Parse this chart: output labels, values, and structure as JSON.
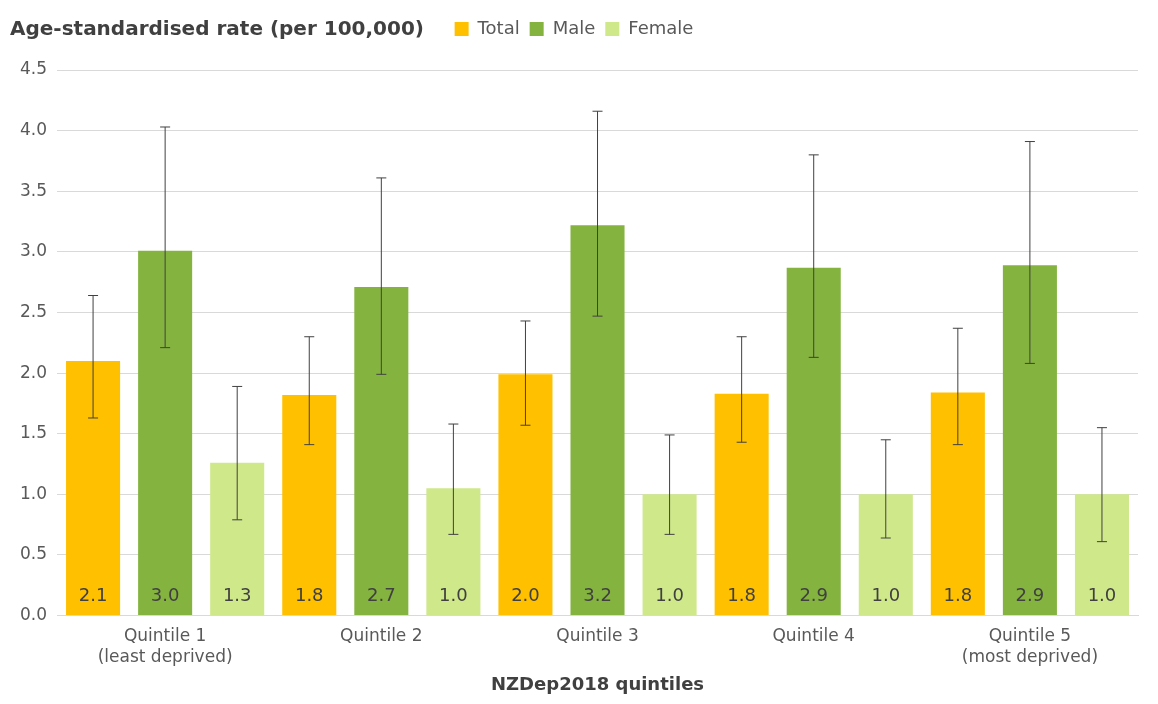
{
  "chart_data": {
    "type": "bar",
    "ylabel": "Age-standardised rate (per 100,000)",
    "xlabel": "NZDep2018 quintiles",
    "categories": [
      "Quintile 1\n(least deprived)",
      "Quintile 2",
      "Quintile 3",
      "Quintile 4",
      "Quintile 5\n(most deprived)"
    ],
    "series": [
      {
        "name": "Total",
        "color": "#ffc000",
        "values": [
          2.1,
          1.82,
          1.99,
          1.83,
          1.84
        ],
        "errors": [
          [
            1.63,
            2.64
          ],
          [
            1.41,
            2.3
          ],
          [
            1.57,
            2.43
          ],
          [
            1.43,
            2.3
          ],
          [
            1.41,
            2.37
          ]
        ],
        "value_labels": [
          "2.1",
          "1.8",
          "2.0",
          "1.8",
          "1.8"
        ]
      },
      {
        "name": "Male",
        "color": "#84b33f",
        "values": [
          3.01,
          2.71,
          3.22,
          2.87,
          2.89
        ],
        "errors": [
          [
            2.21,
            4.03
          ],
          [
            1.99,
            3.61
          ],
          [
            2.47,
            4.16
          ],
          [
            2.13,
            3.8
          ],
          [
            2.08,
            3.91
          ]
        ],
        "value_labels": [
          "3.0",
          "2.7",
          "3.2",
          "2.9",
          "2.9"
        ]
      },
      {
        "name": "Female",
        "color": "#cfe88a",
        "values": [
          1.26,
          1.05,
          1.0,
          1.0,
          1.0
        ],
        "errors": [
          [
            0.79,
            1.89
          ],
          [
            0.67,
            1.58
          ],
          [
            0.67,
            1.49
          ],
          [
            0.64,
            1.45
          ],
          [
            0.61,
            1.55
          ]
        ],
        "value_labels": [
          "1.3",
          "1.0",
          "1.0",
          "1.0",
          "1.0"
        ]
      }
    ],
    "ylim": [
      0,
      4.5
    ],
    "yticks": [
      {
        "value": 0,
        "label": "0.0"
      },
      {
        "value": 0.5,
        "label": "0.5"
      },
      {
        "value": 1,
        "label": "1.0"
      },
      {
        "value": 1.5,
        "label": "1.5"
      },
      {
        "value": 2,
        "label": "2.0"
      },
      {
        "value": 2.5,
        "label": "2.5"
      },
      {
        "value": 3,
        "label": "3.0"
      },
      {
        "value": 3.5,
        "label": "3.5"
      },
      {
        "value": 4,
        "label": "4.0"
      },
      {
        "value": 4.5,
        "label": "4.5"
      }
    ],
    "grid": "y",
    "legend": "top"
  }
}
